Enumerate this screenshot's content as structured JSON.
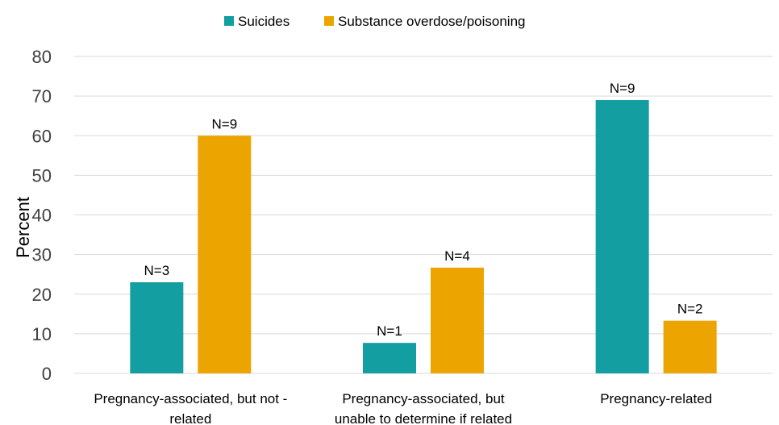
{
  "chart_data": {
    "type": "bar",
    "categories": [
      [
        "Pregnancy-associated, but not -",
        "related"
      ],
      [
        "Pregnancy-associated, but",
        "unable to determine if related"
      ],
      [
        "Pregnancy-related"
      ]
    ],
    "series": [
      {
        "name": "Suicides",
        "color": "#139ea2",
        "values": [
          23,
          7.7,
          69
        ],
        "labels": [
          "N=3",
          "N=1",
          "N=9"
        ]
      },
      {
        "name": "Substance overdose/poisoning",
        "color": "#eca500",
        "values": [
          60,
          26.7,
          13.3
        ],
        "labels": [
          "N=9",
          "N=4",
          "N=2"
        ]
      }
    ],
    "ylabel": "Percent",
    "ylim": [
      0,
      80
    ],
    "yticks": [
      0,
      10,
      20,
      30,
      40,
      50,
      60,
      70,
      80
    ],
    "grid": true,
    "legend_position": "top-center"
  }
}
